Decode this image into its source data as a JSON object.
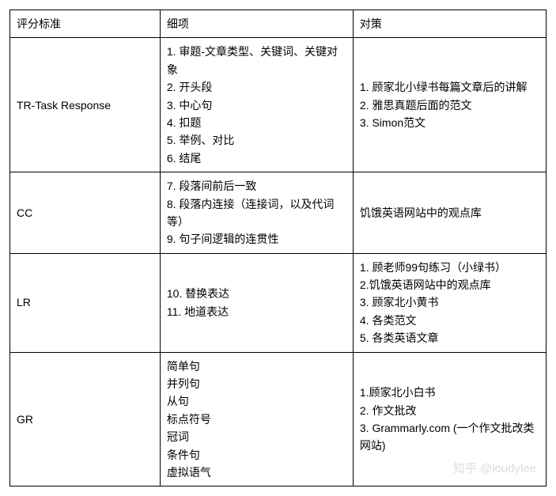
{
  "table": {
    "headers": {
      "criteria": "评分标准",
      "details": "细项",
      "strategy": "对策"
    },
    "rows": [
      {
        "criteria": "TR-Task Response",
        "details": "1. 审题-文章类型、关键词、关键对象\n2. 开头段\n3. 中心句\n4. 扣题\n5. 举例、对比\n6. 结尾",
        "strategy": "1. 顾家北小绿书每篇文章后的讲解\n2. 雅思真题后面的范文\n3. Simon范文"
      },
      {
        "criteria": "CC",
        "details": "7. 段落间前后一致\n8. 段落内连接（连接词，以及代词等）\n9. 句子间逻辑的连贯性",
        "strategy": "饥饿英语网站中的观点库"
      },
      {
        "criteria": "LR",
        "details": "10. 替换表达\n11. 地道表达",
        "strategy": "1. 顾老师99句练习（小绿书）\n2.饥饿英语网站中的观点库\n3. 顾家北小黄书\n4. 各类范文\n5. 各类英语文章"
      },
      {
        "criteria": "GR",
        "details": "简单句\n并列句\n从句\n标点符号\n冠词\n条件句\n虚拟语气",
        "strategy": "1.顾家北小白书\n2. 作文批改\n3. Grammarly.com (一个作文批改类网站)"
      }
    ]
  },
  "watermark": "知乎 @loudylee"
}
